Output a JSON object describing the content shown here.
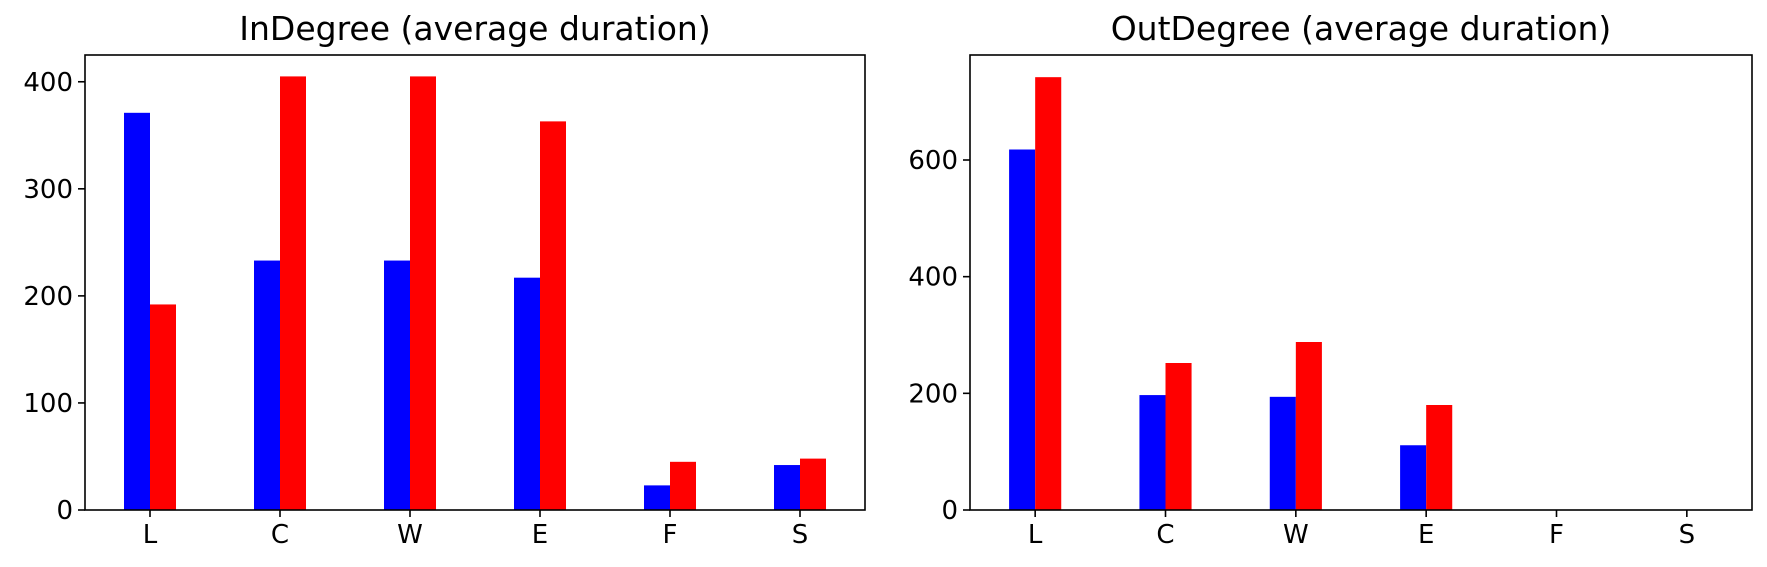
{
  "chart_data": [
    {
      "type": "bar",
      "title": "InDegree (average duration)",
      "xlabel": "",
      "ylabel": "",
      "categories": [
        "L",
        "C",
        "W",
        "E",
        "F",
        "S"
      ],
      "ylim": [
        0,
        425
      ],
      "yticks": [
        0,
        100,
        200,
        300,
        400
      ],
      "colors": [
        "#0000ff",
        "#ff0000"
      ],
      "grid": false,
      "series": [
        {
          "values": [
            371,
            233,
            233,
            217,
            23,
            42
          ]
        },
        {
          "values": [
            192,
            405,
            405,
            363,
            45,
            48
          ]
        }
      ]
    },
    {
      "type": "bar",
      "title": "OutDegree (average duration)",
      "xlabel": "",
      "ylabel": "",
      "categories": [
        "L",
        "C",
        "W",
        "E",
        "F",
        "S"
      ],
      "ylim": [
        0,
        780
      ],
      "yticks": [
        0,
        200,
        400,
        600
      ],
      "colors": [
        "#0000ff",
        "#ff0000"
      ],
      "grid": false,
      "series": [
        {
          "values": [
            618,
            197,
            194,
            111,
            0,
            0
          ]
        },
        {
          "values": [
            742,
            252,
            288,
            180,
            0,
            0
          ]
        }
      ]
    }
  ]
}
